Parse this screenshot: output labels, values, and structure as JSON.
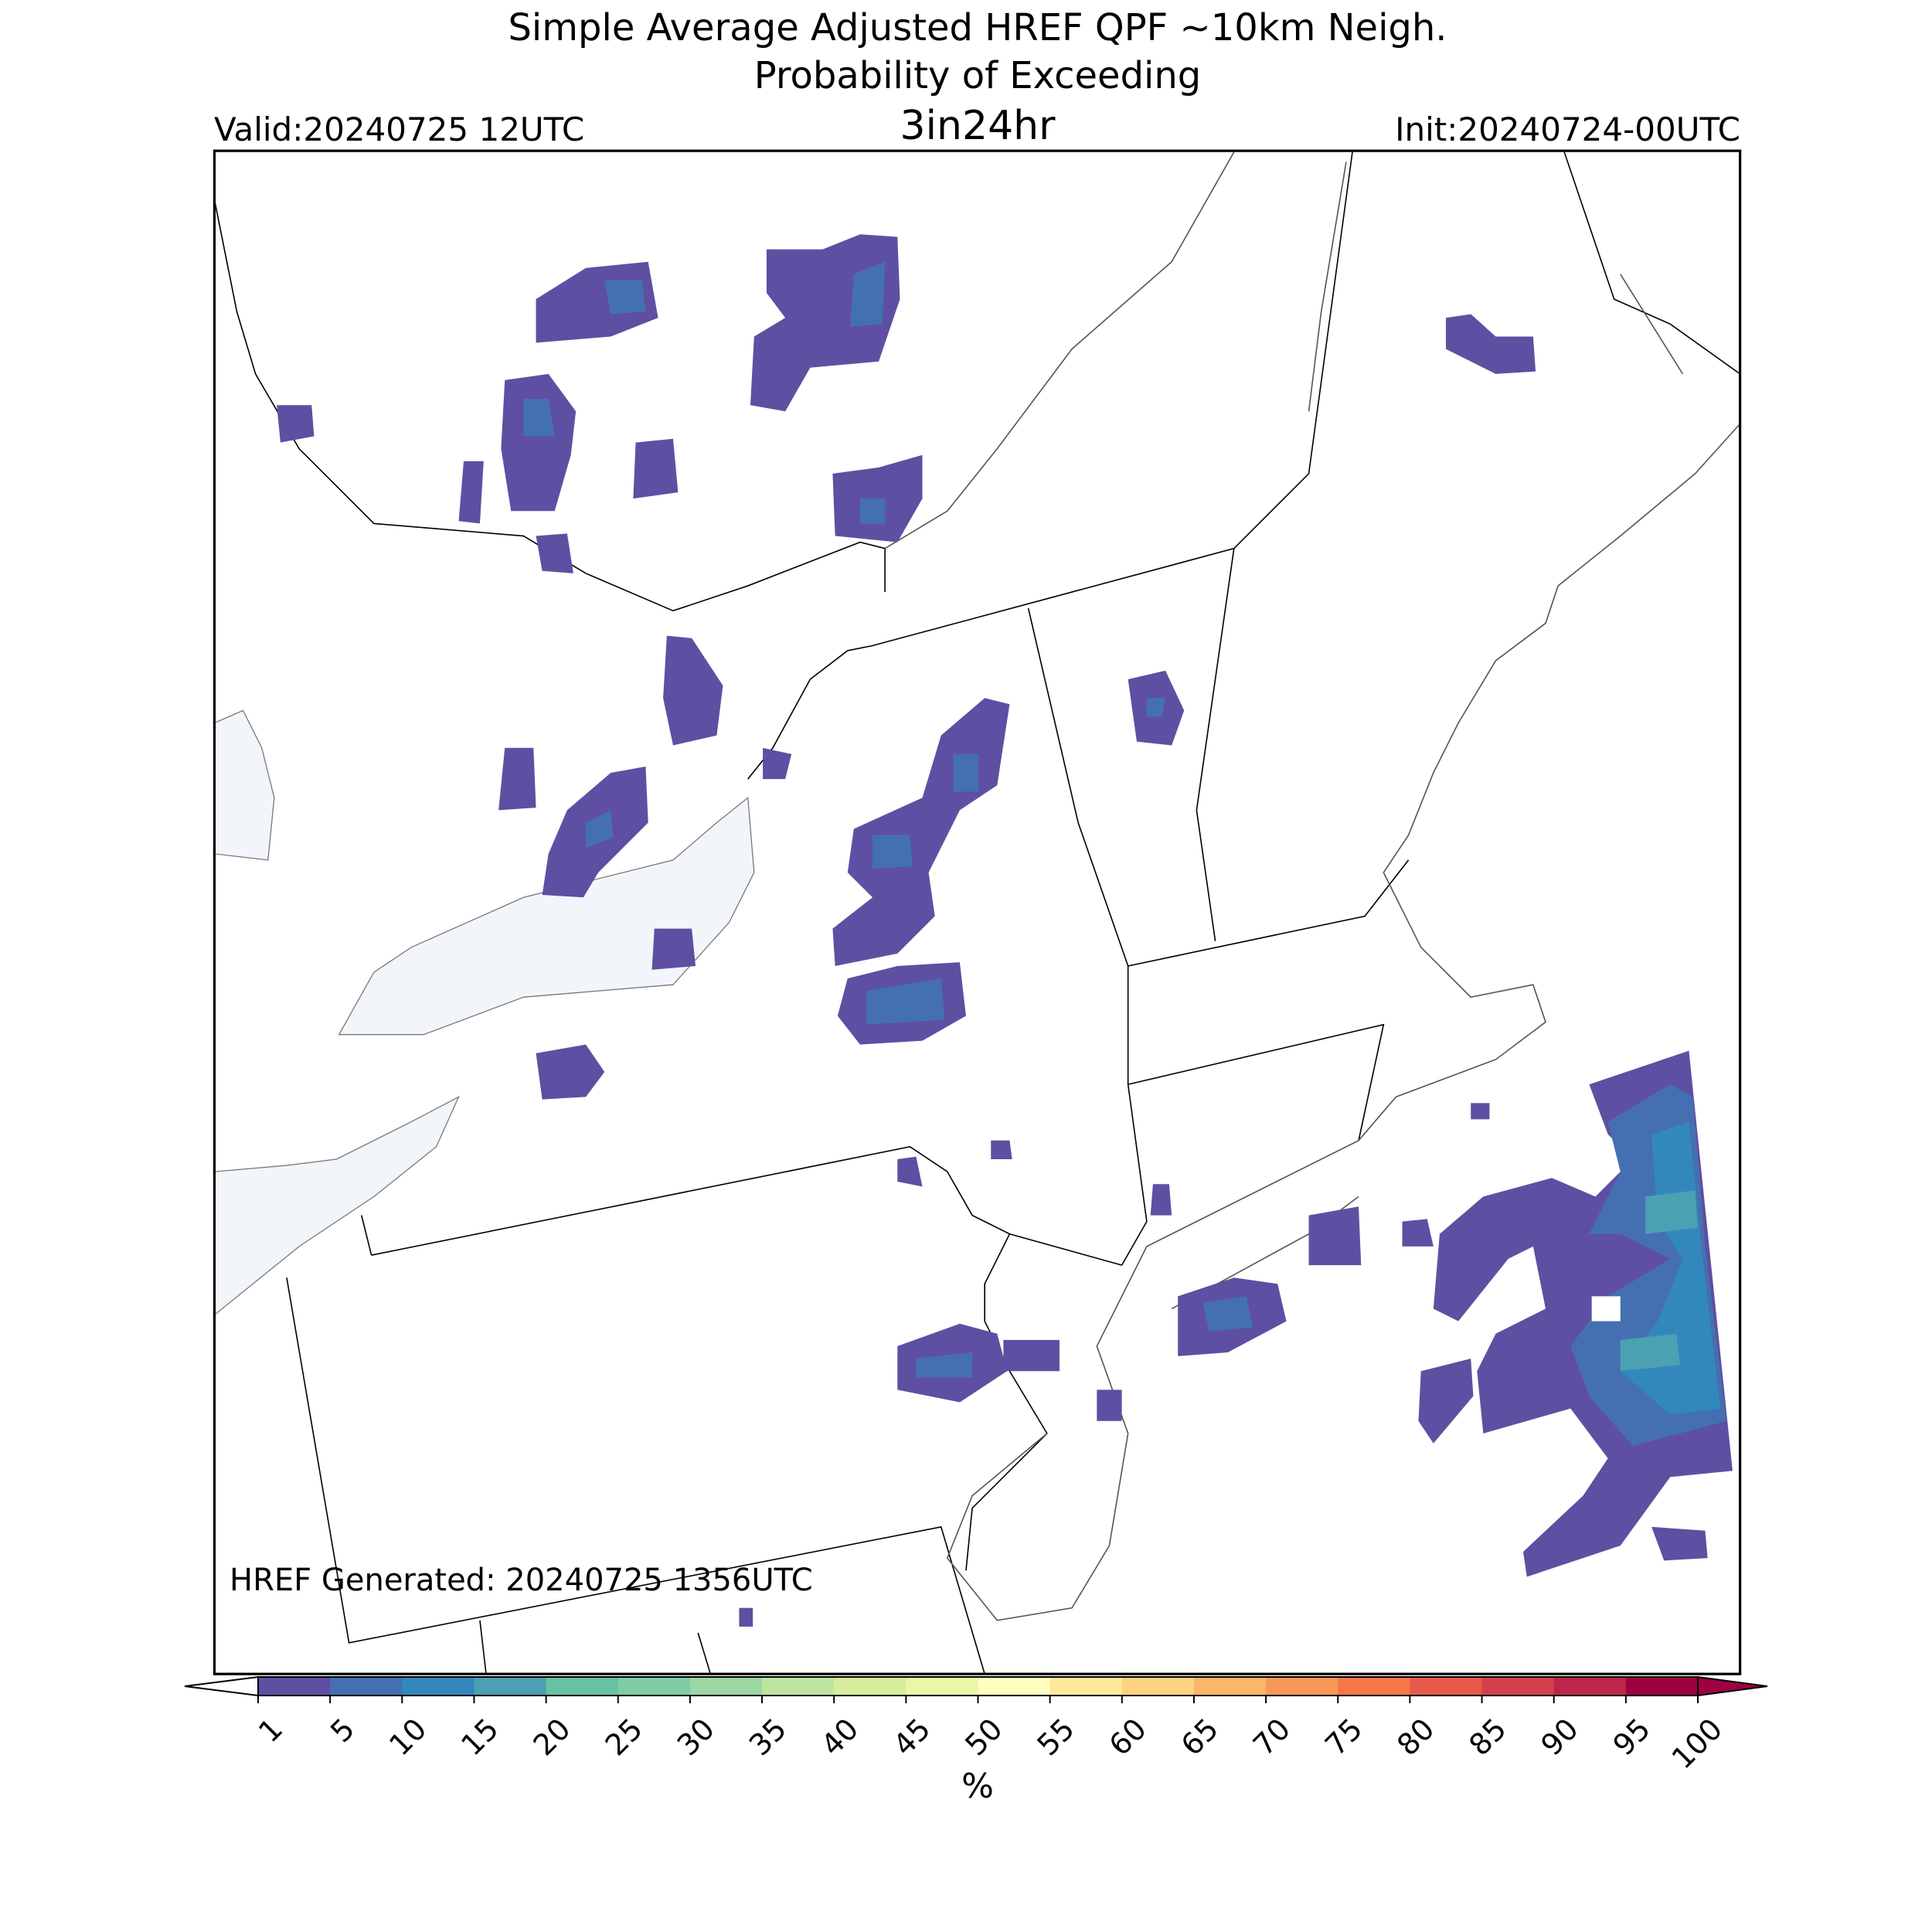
{
  "header": {
    "title_lines": [
      "Simple Average Adjusted HREF QPF ~10km Neigh.",
      "Probability of Exceeding"
    ],
    "threshold": "3in24hr",
    "valid": "Valid:20240725 12UTC",
    "init": "Init:20240724-00UTC"
  },
  "map": {
    "note": "HREF Generated: 20240725 1356UTC"
  },
  "colorbar": {
    "label": "%",
    "ticks": [
      1,
      5,
      10,
      15,
      20,
      25,
      30,
      35,
      40,
      45,
      50,
      55,
      60,
      65,
      70,
      75,
      80,
      85,
      90,
      95,
      100
    ],
    "colors": [
      "#5e4fa2",
      "#4470b1",
      "#3288bd",
      "#4ba0b1",
      "#66c2a5",
      "#7fcca4",
      "#9dd7a4",
      "#bee5a0",
      "#d6ee9b",
      "#ebf7a6",
      "#fffebe",
      "#fee899",
      "#fdd280",
      "#fdb567",
      "#fa9856",
      "#f57748",
      "#e75948",
      "#d6404e",
      "#be254a",
      "#9e0142"
    ],
    "under_color": "#ffffff",
    "over_color": "#9e0142"
  }
}
